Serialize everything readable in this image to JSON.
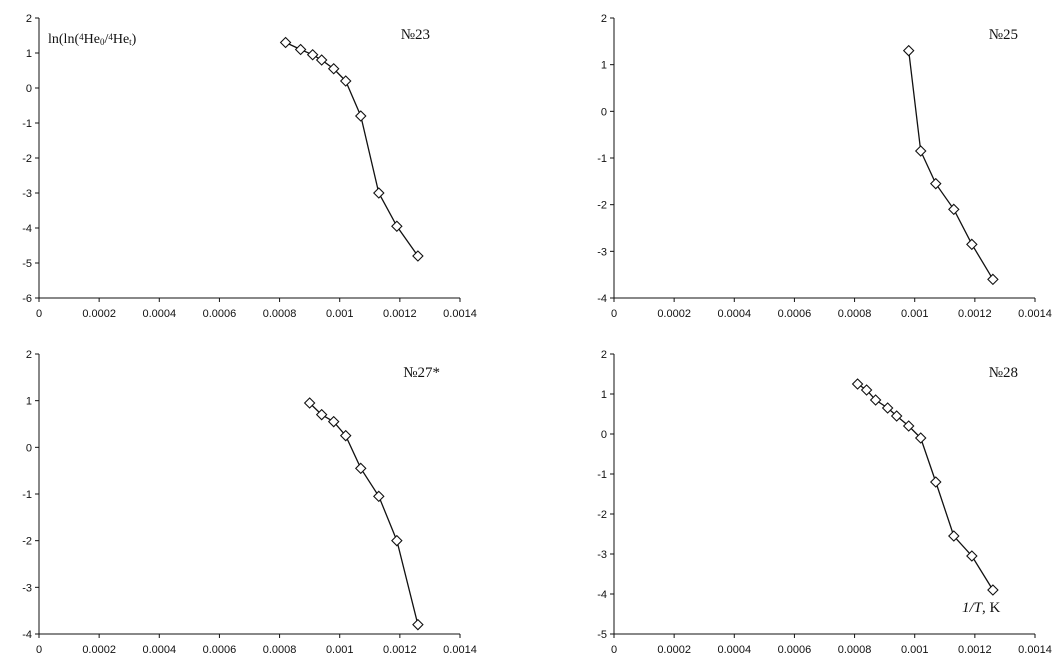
{
  "chart_data": [
    {
      "type": "line",
      "title": "№23",
      "ylabel_html_parts": {
        "pre": "ln(ln(",
        "sup1": "4",
        "mid1": "He",
        "sub1": "0",
        "mid2": "/",
        "sup2": "4",
        "mid3": "He",
        "sub2": "t",
        "post": ")"
      },
      "xlim": [
        0,
        0.0014
      ],
      "ylim": [
        -6,
        2
      ],
      "xticks": [
        "0",
        "0.0002",
        "0.0004",
        "0.0006",
        "0.0008",
        "0.001",
        "0.0012",
        "0.0014"
      ],
      "xtick_values": [
        0,
        0.0002,
        0.0004,
        0.0006,
        0.0008,
        0.001,
        0.0012,
        0.0014
      ],
      "yticks": [
        "2",
        "1",
        "0",
        "-1",
        "-2",
        "-3",
        "-4",
        "-5",
        "-6"
      ],
      "ytick_values": [
        2,
        1,
        0,
        -1,
        -2,
        -3,
        -4,
        -5,
        -6
      ],
      "series": [
        {
          "marker": "diamond",
          "x": [
            0.00082,
            0.00087,
            0.00091,
            0.00094,
            0.00098,
            0.00102,
            0.00107,
            0.00113,
            0.00119,
            0.00126
          ],
          "y": [
            1.3,
            1.1,
            0.95,
            0.8,
            0.55,
            0.2,
            -0.8,
            -3.0,
            -3.95,
            -4.8
          ]
        }
      ]
    },
    {
      "type": "line",
      "title": "№25",
      "xlim": [
        0,
        0.0014
      ],
      "ylim": [
        -4,
        2
      ],
      "xticks": [
        "0",
        "0.0002",
        "0.0004",
        "0.0006",
        "0.0008",
        "0.001",
        "0.0012",
        "0.0014"
      ],
      "xtick_values": [
        0,
        0.0002,
        0.0004,
        0.0006,
        0.0008,
        0.001,
        0.0012,
        0.0014
      ],
      "yticks": [
        "2",
        "1",
        "0",
        "-1",
        "-2",
        "-3",
        "-4"
      ],
      "ytick_values": [
        2,
        1,
        0,
        -1,
        -2,
        -3,
        -4
      ],
      "series": [
        {
          "marker": "diamond",
          "x": [
            0.00098,
            0.00102,
            0.00107,
            0.00113,
            0.00119,
            0.00126
          ],
          "y": [
            1.3,
            -0.85,
            -1.55,
            -2.1,
            -2.85,
            -3.6
          ]
        }
      ]
    },
    {
      "type": "line",
      "title": "№27*",
      "xlim": [
        0,
        0.0014
      ],
      "ylim": [
        -4,
        2
      ],
      "xticks": [
        "0",
        "0.0002",
        "0.0004",
        "0.0006",
        "0.0008",
        "0.001",
        "0.0012",
        "0.0014"
      ],
      "xtick_values": [
        0,
        0.0002,
        0.0004,
        0.0006,
        0.0008,
        0.001,
        0.0012,
        0.0014
      ],
      "yticks": [
        "2",
        "1",
        "0",
        "-1",
        "-2",
        "-3",
        "-4"
      ],
      "ytick_values": [
        2,
        1,
        0,
        -1,
        -2,
        -3,
        -4
      ],
      "series": [
        {
          "marker": "diamond",
          "x": [
            0.0009,
            0.00094,
            0.00098,
            0.00102,
            0.00107,
            0.00113,
            0.00119,
            0.00126
          ],
          "y": [
            0.95,
            0.7,
            0.55,
            0.25,
            -0.45,
            -1.05,
            -2.0,
            -3.8
          ]
        }
      ]
    },
    {
      "type": "line",
      "title": "№28",
      "xlabel_html_parts": {
        "italic": "1/T",
        "rest": ", K"
      },
      "xlim": [
        0,
        0.0014
      ],
      "ylim": [
        -5,
        2
      ],
      "xticks": [
        "0",
        "0.0002",
        "0.0004",
        "0.0006",
        "0.0008",
        "0.001",
        "0.0012",
        "0.0014"
      ],
      "xtick_values": [
        0,
        0.0002,
        0.0004,
        0.0006,
        0.0008,
        0.001,
        0.0012,
        0.0014
      ],
      "yticks": [
        "2",
        "1",
        "0",
        "-1",
        "-2",
        "-3",
        "-4",
        "-5"
      ],
      "ytick_values": [
        2,
        1,
        0,
        -1,
        -2,
        -3,
        -4,
        -5
      ],
      "series": [
        {
          "marker": "diamond",
          "x": [
            0.00081,
            0.00084,
            0.00087,
            0.00091,
            0.00094,
            0.00098,
            0.00102,
            0.00107,
            0.00113,
            0.00119,
            0.00126
          ],
          "y": [
            1.25,
            1.1,
            0.85,
            0.65,
            0.45,
            0.2,
            -0.1,
            -1.2,
            -2.55,
            -3.05,
            -3.9
          ]
        }
      ]
    }
  ]
}
